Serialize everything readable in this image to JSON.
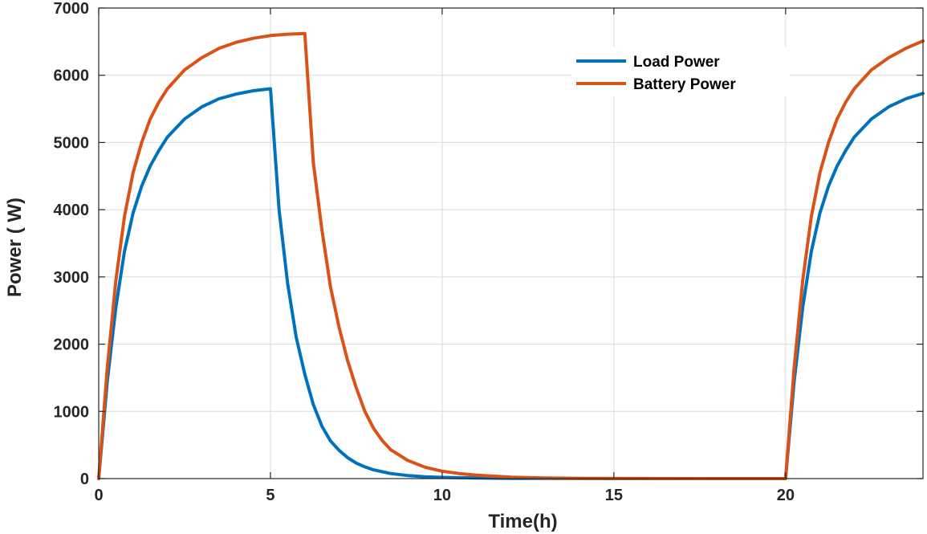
{
  "chart_data": {
    "type": "line",
    "title": "",
    "xlabel": "Time(h)",
    "ylabel": "Power ( W)",
    "xlim": [
      0,
      24
    ],
    "ylim": [
      0,
      7000
    ],
    "xticks": [
      0,
      5,
      10,
      15,
      20
    ],
    "yticks": [
      0,
      1000,
      2000,
      3000,
      4000,
      5000,
      6000,
      7000
    ],
    "grid": true,
    "legend_position": "top-right",
    "series": [
      {
        "name": "Load Power",
        "color": "#0072BD",
        "x": [
          0,
          0.25,
          0.5,
          0.75,
          1,
          1.25,
          1.5,
          1.75,
          2,
          2.5,
          3,
          3.5,
          4,
          4.5,
          5,
          5.25,
          5.5,
          5.75,
          6,
          6.25,
          6.5,
          6.75,
          7,
          7.25,
          7.5,
          7.75,
          8,
          8.5,
          9,
          9.5,
          10,
          11,
          12,
          13,
          14,
          16,
          18,
          20,
          20.25,
          20.5,
          20.75,
          21,
          21.25,
          21.5,
          21.75,
          22,
          22.5,
          23,
          23.5,
          24
        ],
        "y": [
          0,
          1450,
          2550,
          3380,
          3950,
          4350,
          4650,
          4880,
          5080,
          5350,
          5530,
          5650,
          5720,
          5770,
          5800,
          4000,
          2900,
          2100,
          1550,
          1100,
          780,
          560,
          420,
          310,
          230,
          175,
          130,
          75,
          45,
          28,
          18,
          8,
          4,
          2,
          1,
          0,
          0,
          0,
          1450,
          2550,
          3380,
          3950,
          4350,
          4650,
          4880,
          5080,
          5350,
          5530,
          5650,
          5730
        ]
      },
      {
        "name": "Battery Power",
        "color": "#D95319",
        "x": [
          0,
          0.25,
          0.5,
          0.75,
          1,
          1.25,
          1.5,
          1.75,
          2,
          2.5,
          3,
          3.5,
          4,
          4.5,
          5,
          5.5,
          6,
          6.25,
          6.5,
          6.75,
          7,
          7.25,
          7.5,
          7.75,
          8,
          8.25,
          8.5,
          9,
          9.5,
          10,
          10.5,
          11,
          12,
          13,
          14,
          16,
          18,
          20,
          20.25,
          20.5,
          20.75,
          21,
          21.25,
          21.5,
          21.75,
          22,
          22.5,
          23,
          23.5,
          24
        ],
        "y": [
          0,
          1650,
          2950,
          3900,
          4550,
          5000,
          5350,
          5600,
          5800,
          6080,
          6260,
          6400,
          6490,
          6550,
          6590,
          6610,
          6620,
          4700,
          3700,
          2850,
          2250,
          1750,
          1350,
          1000,
          750,
          570,
          430,
          270,
          170,
          110,
          75,
          50,
          22,
          10,
          4,
          1,
          0,
          0,
          1650,
          2950,
          3900,
          4550,
          5000,
          5350,
          5600,
          5800,
          6080,
          6260,
          6400,
          6510
        ]
      }
    ]
  }
}
